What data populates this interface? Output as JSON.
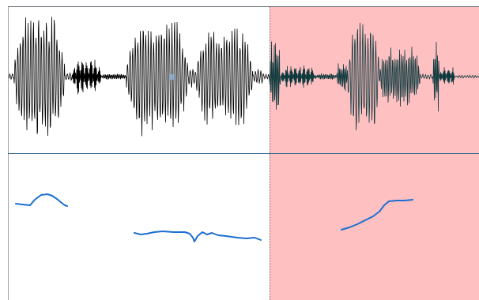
{
  "editor": {
    "selection_color": "#ffc0c2",
    "waveform_color": "#000000",
    "waveform_selected_color": "#0f3a3e",
    "pitch_color": "#1c6fd1",
    "divider_color": "#3a6a8a",
    "cursor_color": "#8fb3d9"
  },
  "icons": {
    "cursor": "playback-cursor-marker"
  }
}
